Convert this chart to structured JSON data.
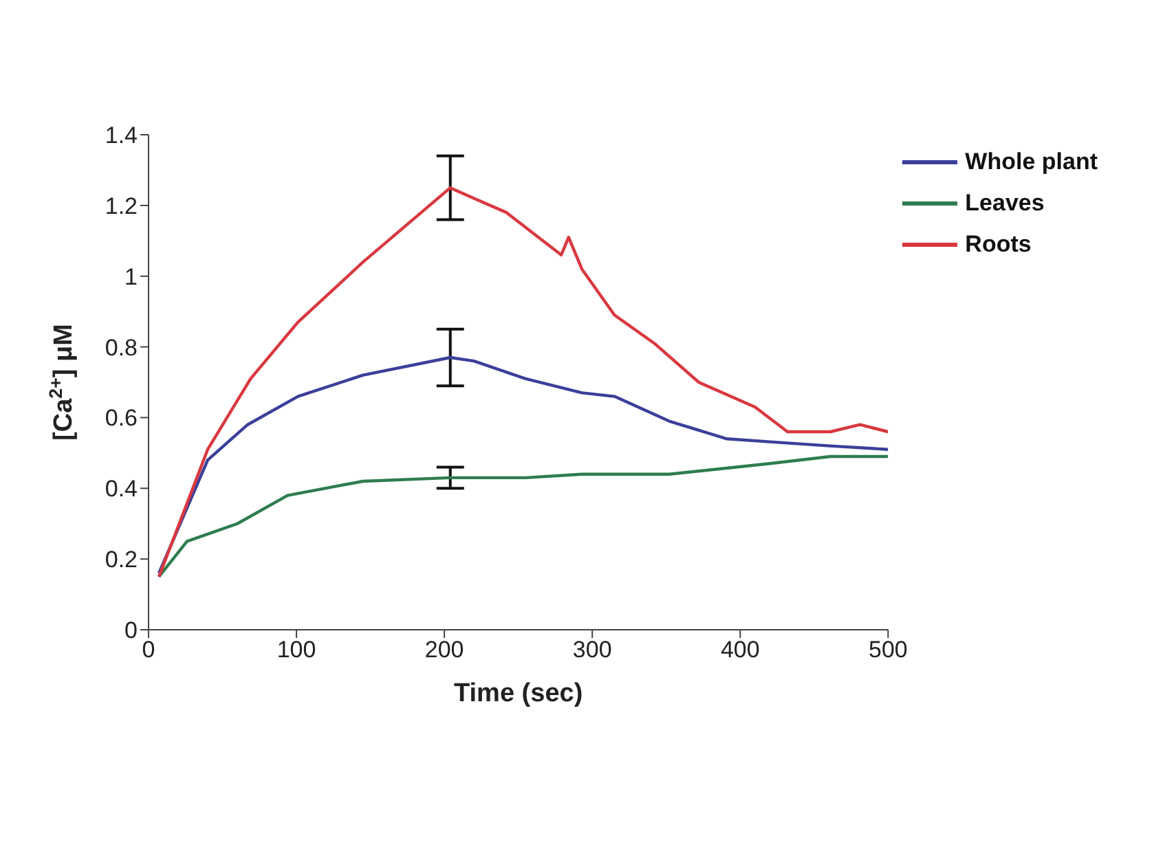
{
  "chart_data": {
    "type": "line",
    "xlabel": "Time (sec)",
    "ylabel": "[Ca$^{2+}$] μM",
    "xlim": [
      0,
      500
    ],
    "xticks": [
      0,
      100,
      200,
      300,
      400,
      500
    ],
    "ylim": [
      0,
      1.4
    ],
    "yticks": [
      0,
      0.2,
      0.4,
      0.6,
      0.8,
      1,
      1.2,
      1.4
    ],
    "legend": "top right",
    "marker": "none",
    "line_style": "solid",
    "series": [
      {
        "name": "Whole plant",
        "color": "#3b3f9a",
        "x": [
          7,
          40,
          67,
          101,
          145,
          204,
          220,
          255,
          293,
          315,
          352,
          391,
          425,
          461,
          500
        ],
        "values": [
          0.16,
          0.48,
          0.58,
          0.66,
          0.72,
          0.77,
          0.76,
          0.71,
          0.67,
          0.66,
          0.59,
          0.54,
          0.53,
          0.52,
          0.51
        ],
        "errors": [
          null,
          null,
          null,
          null,
          null,
          0.08,
          null,
          null,
          null,
          null,
          null,
          null,
          null,
          null,
          null
        ]
      },
      {
        "name": "Leaves",
        "color": "#2e7d4f",
        "x": [
          7,
          26,
          60,
          94,
          145,
          204,
          255,
          293,
          352,
          420,
          461,
          500
        ],
        "values": [
          0.15,
          0.25,
          0.3,
          0.38,
          0.42,
          0.43,
          0.43,
          0.44,
          0.44,
          0.47,
          0.49,
          0.49
        ],
        "errors": [
          null,
          null,
          null,
          null,
          null,
          0.03,
          null,
          null,
          null,
          null,
          null,
          null
        ]
      },
      {
        "name": "Roots",
        "color": "#d9383f",
        "x": [
          7,
          40,
          69,
          101,
          145,
          204,
          220,
          242,
          279,
          284,
          293,
          315,
          342,
          372,
          410,
          432,
          461,
          481,
          500
        ],
        "values": [
          0.15,
          0.51,
          0.71,
          0.87,
          1.04,
          1.25,
          1.22,
          1.18,
          1.06,
          1.11,
          1.02,
          0.89,
          0.81,
          0.7,
          0.63,
          0.56,
          0.56,
          0.58,
          0.56
        ],
        "errors": [
          null,
          null,
          null,
          null,
          null,
          0.09,
          null,
          null,
          null,
          null,
          null,
          null,
          null,
          null,
          null,
          null,
          null,
          null,
          null
        ]
      }
    ]
  }
}
